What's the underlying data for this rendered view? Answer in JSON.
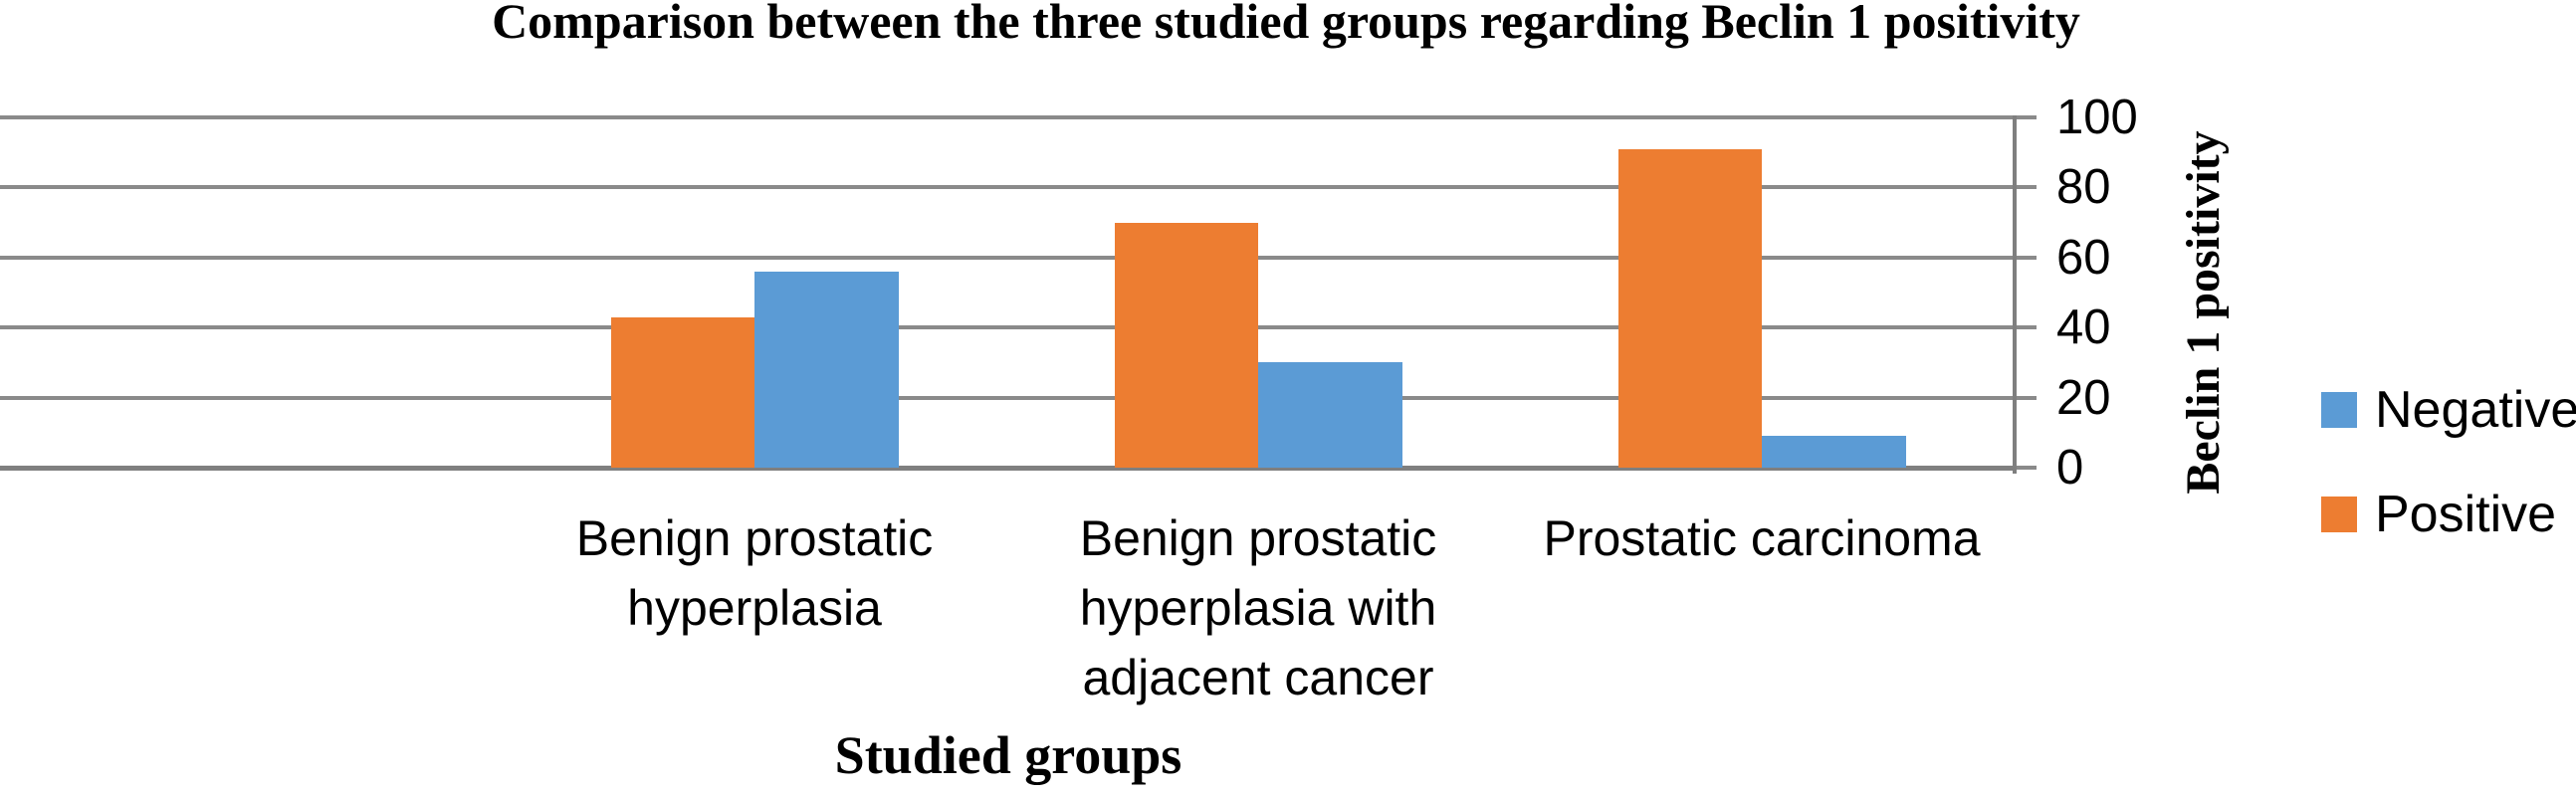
{
  "chart_data": {
    "type": "bar",
    "title": "Comparison between the three studied groups regarding Beclin 1 positivity",
    "categories": [
      "Benign prostatic hyperplasia",
      "Benign prostatic hyperplasia with adjacent cancer",
      "Prostatic carcinoma"
    ],
    "series": [
      {
        "name": "Negative",
        "color": "#5B9BD5",
        "values": [
          56,
          30,
          9
        ]
      },
      {
        "name": "Positive",
        "color": "#ED7D31",
        "values": [
          43,
          70,
          91
        ]
      }
    ],
    "bar_draw_order": "Positive left, Negative right",
    "xlabel": "Studied groups",
    "ylabel": "Beclin 1 positivity",
    "ylim": [
      0,
      100
    ],
    "yticks": [
      "0",
      "20",
      "40",
      "60",
      "80",
      "100"
    ],
    "grid": "horizontal gridlines on, value axis on right side",
    "legend_position": "right"
  },
  "colors": {
    "gridline": "#8a8a8a",
    "axis_line": "#7f7f7f",
    "background": "#ffffff",
    "text": "#000000",
    "negative_blue": "#5B9BD5",
    "positive_orange": "#ED7D31"
  }
}
